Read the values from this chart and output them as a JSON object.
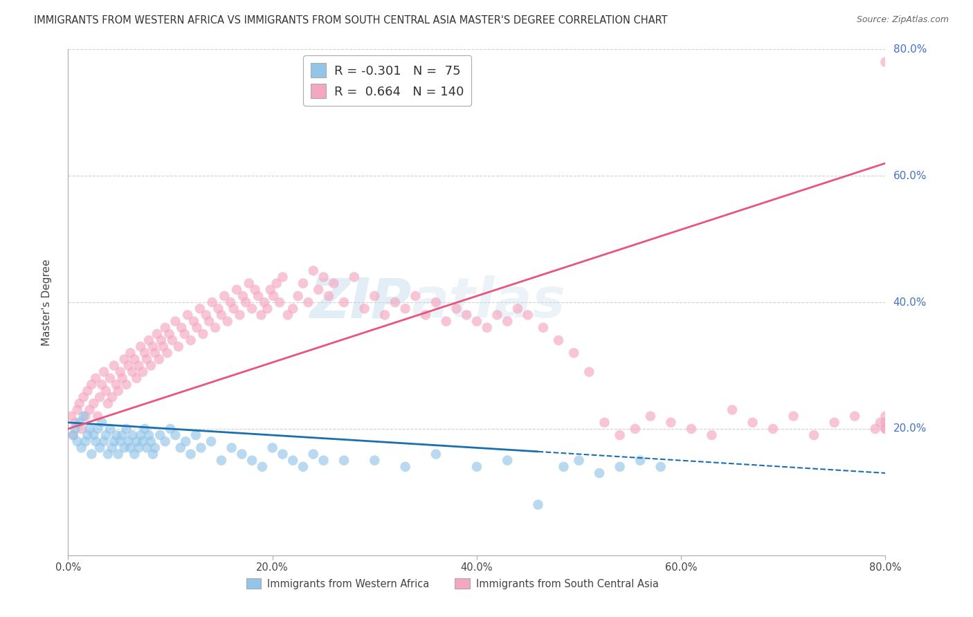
{
  "title": "IMMIGRANTS FROM WESTERN AFRICA VS IMMIGRANTS FROM SOUTH CENTRAL ASIA MASTER'S DEGREE CORRELATION CHART",
  "source": "Source: ZipAtlas.com",
  "ylabel": "Master's Degree",
  "x_tick_labels": [
    "0.0%",
    "20.0%",
    "40.0%",
    "60.0%",
    "80.0%"
  ],
  "x_tick_values": [
    0,
    20,
    40,
    60,
    80
  ],
  "y_tick_labels": [
    "80.0%",
    "60.0%",
    "40.0%",
    "20.0%"
  ],
  "y_tick_values": [
    80,
    60,
    40,
    20
  ],
  "xlim": [
    0,
    80
  ],
  "ylim": [
    0,
    80
  ],
  "blue_R": -0.301,
  "blue_N": 75,
  "pink_R": 0.664,
  "pink_N": 140,
  "blue_color": "#92c5e8",
  "pink_color": "#f4a7c0",
  "blue_line_color": "#1a6faf",
  "pink_line_color": "#e8547a",
  "legend_label_blue": "Immigrants from Western Africa",
  "legend_label_pink": "Immigrants from South Central Asia",
  "watermark": "ZIPatlas",
  "blue_scatter_x": [
    0.5,
    0.7,
    0.9,
    1.1,
    1.3,
    1.5,
    1.7,
    1.9,
    2.1,
    2.3,
    2.5,
    2.7,
    2.9,
    3.1,
    3.3,
    3.5,
    3.7,
    3.9,
    4.1,
    4.3,
    4.5,
    4.7,
    4.9,
    5.1,
    5.3,
    5.5,
    5.7,
    5.9,
    6.1,
    6.3,
    6.5,
    6.7,
    6.9,
    7.1,
    7.3,
    7.5,
    7.7,
    7.9,
    8.1,
    8.3,
    8.5,
    9.0,
    9.5,
    10.0,
    10.5,
    11.0,
    11.5,
    12.0,
    12.5,
    13.0,
    14.0,
    15.0,
    16.0,
    17.0,
    18.0,
    19.0,
    20.0,
    21.0,
    22.0,
    23.0,
    24.0,
    25.0,
    27.0,
    30.0,
    33.0,
    36.0,
    40.0,
    43.0,
    46.0,
    48.5,
    50.0,
    52.0,
    54.0,
    56.0,
    58.0
  ],
  "blue_scatter_y": [
    19,
    20,
    18,
    21,
    17,
    22,
    18,
    19,
    20,
    16,
    19,
    18,
    20,
    17,
    21,
    18,
    19,
    16,
    20,
    17,
    18,
    19,
    16,
    18,
    19,
    17,
    20,
    18,
    17,
    19,
    16,
    18,
    17,
    19,
    18,
    20,
    17,
    19,
    18,
    16,
    17,
    19,
    18,
    20,
    19,
    17,
    18,
    16,
    19,
    17,
    18,
    15,
    17,
    16,
    15,
    14,
    17,
    16,
    15,
    14,
    16,
    15,
    15,
    15,
    14,
    16,
    14,
    15,
    8,
    14,
    15,
    13,
    14,
    15,
    14
  ],
  "pink_scatter_x": [
    0.3,
    0.5,
    0.7,
    0.9,
    1.1,
    1.3,
    1.5,
    1.7,
    1.9,
    2.1,
    2.3,
    2.5,
    2.7,
    2.9,
    3.1,
    3.3,
    3.5,
    3.7,
    3.9,
    4.1,
    4.3,
    4.5,
    4.7,
    4.9,
    5.1,
    5.3,
    5.5,
    5.7,
    5.9,
    6.1,
    6.3,
    6.5,
    6.7,
    6.9,
    7.1,
    7.3,
    7.5,
    7.7,
    7.9,
    8.1,
    8.3,
    8.5,
    8.7,
    8.9,
    9.1,
    9.3,
    9.5,
    9.7,
    9.9,
    10.2,
    10.5,
    10.8,
    11.1,
    11.4,
    11.7,
    12.0,
    12.3,
    12.6,
    12.9,
    13.2,
    13.5,
    13.8,
    14.1,
    14.4,
    14.7,
    15.0,
    15.3,
    15.6,
    15.9,
    16.2,
    16.5,
    16.8,
    17.1,
    17.4,
    17.7,
    18.0,
    18.3,
    18.6,
    18.9,
    19.2,
    19.5,
    19.8,
    20.1,
    20.4,
    20.7,
    21.0,
    21.5,
    22.0,
    22.5,
    23.0,
    23.5,
    24.0,
    24.5,
    25.0,
    25.5,
    26.0,
    27.0,
    28.0,
    29.0,
    30.0,
    31.0,
    32.0,
    33.0,
    34.0,
    35.0,
    36.0,
    37.0,
    38.0,
    39.0,
    40.0,
    41.0,
    42.0,
    43.0,
    44.0,
    45.0,
    46.5,
    48.0,
    49.5,
    51.0,
    52.5,
    54.0,
    55.5,
    57.0,
    59.0,
    61.0,
    63.0,
    65.0,
    67.0,
    69.0,
    71.0,
    73.0,
    75.0,
    77.0,
    79.0,
    79.5,
    80.0,
    80.0,
    80.0,
    80.0,
    80.0
  ],
  "pink_scatter_y": [
    22,
    19,
    21,
    23,
    24,
    20,
    25,
    22,
    26,
    23,
    27,
    24,
    28,
    22,
    25,
    27,
    29,
    26,
    24,
    28,
    25,
    30,
    27,
    26,
    29,
    28,
    31,
    27,
    30,
    32,
    29,
    31,
    28,
    30,
    33,
    29,
    32,
    31,
    34,
    30,
    33,
    32,
    35,
    31,
    34,
    33,
    36,
    32,
    35,
    34,
    37,
    33,
    36,
    35,
    38,
    34,
    37,
    36,
    39,
    35,
    38,
    37,
    40,
    36,
    39,
    38,
    41,
    37,
    40,
    39,
    42,
    38,
    41,
    40,
    43,
    39,
    42,
    41,
    38,
    40,
    39,
    42,
    41,
    43,
    40,
    44,
    38,
    39,
    41,
    43,
    40,
    45,
    42,
    44,
    41,
    43,
    40,
    44,
    39,
    41,
    38,
    40,
    39,
    41,
    38,
    40,
    37,
    39,
    38,
    37,
    36,
    38,
    37,
    39,
    38,
    36,
    34,
    32,
    29,
    21,
    19,
    20,
    22,
    21,
    20,
    19,
    23,
    21,
    20,
    22,
    19,
    21,
    22,
    20,
    21,
    20,
    22,
    21,
    20,
    78
  ],
  "blue_reg_x0": 0,
  "blue_reg_y0": 21,
  "blue_reg_x1": 80,
  "blue_reg_y1": 13,
  "blue_solid_x_end": 46,
  "pink_reg_x0": 0,
  "pink_reg_y0": 20,
  "pink_reg_x1": 80,
  "pink_reg_y1": 62,
  "grid_color": "#d0d0d0",
  "bg_color": "#ffffff"
}
